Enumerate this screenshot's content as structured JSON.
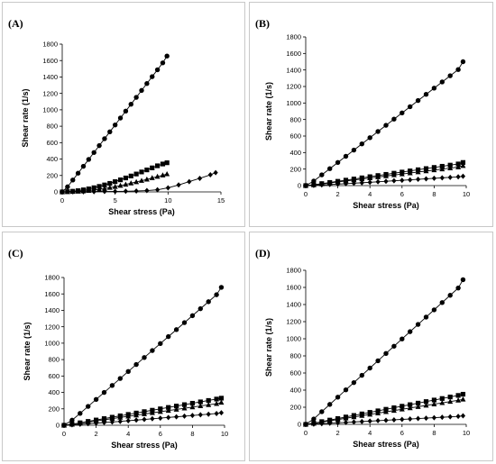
{
  "chart_data": [
    {
      "type": "scatter",
      "panel_label": "(A)",
      "xlabel": "Shear stress (Pa)",
      "ylabel": "Shear rate (1/s)",
      "xlim": [
        0,
        15
      ],
      "ylim": [
        0,
        1800
      ],
      "xticks": [
        0,
        5,
        10,
        15
      ],
      "yticks": [
        0,
        200,
        400,
        600,
        800,
        1000,
        1200,
        1400,
        1600,
        1800
      ],
      "grid": false,
      "series": [
        {
          "marker": "circle",
          "x": [
            0,
            0.5,
            1,
            1.5,
            2,
            2.5,
            3,
            3.5,
            4,
            4.5,
            5,
            5.5,
            6,
            6.5,
            7,
            7.5,
            8,
            8.5,
            9,
            9.5,
            9.9
          ],
          "y": [
            0,
            62,
            145,
            228,
            312,
            396,
            480,
            564,
            648,
            732,
            816,
            900,
            984,
            1068,
            1152,
            1236,
            1320,
            1404,
            1488,
            1572,
            1655
          ]
        },
        {
          "marker": "square",
          "x": [
            0,
            0.5,
            1,
            1.5,
            2,
            2.5,
            3,
            3.5,
            4,
            4.5,
            5,
            5.5,
            6,
            6.5,
            7,
            7.5,
            8,
            8.5,
            9,
            9.5,
            9.9
          ],
          "y": [
            0,
            3,
            8,
            15,
            25,
            37,
            51,
            67,
            85,
            104,
            125,
            147,
            170,
            194,
            218,
            243,
            268,
            293,
            318,
            340,
            355
          ]
        },
        {
          "marker": "triangle",
          "x": [
            0,
            0.5,
            1,
            1.5,
            2,
            2.5,
            3,
            3.5,
            4,
            4.5,
            5,
            5.5,
            6,
            6.5,
            7,
            7.5,
            8,
            8.5,
            9,
            9.5,
            9.9
          ],
          "y": [
            0,
            1,
            3,
            6,
            10,
            16,
            23,
            31,
            41,
            52,
            64,
            77,
            91,
            106,
            121,
            137,
            153,
            170,
            187,
            203,
            218
          ]
        },
        {
          "marker": "diamond",
          "x": [
            0,
            1,
            2,
            3,
            4,
            5,
            6,
            7,
            8,
            9,
            10,
            11,
            12,
            13,
            14,
            14.5
          ],
          "y": [
            0,
            1,
            2,
            3,
            5,
            6,
            8,
            11,
            16,
            26,
            50,
            85,
            125,
            165,
            208,
            235
          ]
        }
      ]
    },
    {
      "type": "scatter",
      "panel_label": "(B)",
      "xlabel": "Shear stress (Pa)",
      "ylabel": "Shear rate (1/s)",
      "xlim": [
        0,
        10
      ],
      "ylim": [
        0,
        1800
      ],
      "xticks": [
        0,
        2,
        4,
        6,
        8,
        10
      ],
      "yticks": [
        0,
        200,
        400,
        600,
        800,
        1000,
        1200,
        1400,
        1600,
        1800
      ],
      "grid": false,
      "series": [
        {
          "marker": "circle",
          "x": [
            0,
            0.5,
            1,
            1.5,
            2,
            2.5,
            3,
            3.5,
            4,
            4.5,
            5,
            5.5,
            6,
            6.5,
            7,
            7.5,
            8,
            8.5,
            9,
            9.5,
            9.8
          ],
          "y": [
            0,
            55,
            130,
            205,
            280,
            355,
            430,
            505,
            580,
            655,
            730,
            805,
            880,
            955,
            1030,
            1105,
            1180,
            1255,
            1330,
            1405,
            1500
          ]
        },
        {
          "marker": "square",
          "x": [
            0,
            0.5,
            1,
            1.5,
            2,
            2.5,
            3,
            3.5,
            4,
            4.5,
            5,
            5.5,
            6,
            6.5,
            7,
            7.5,
            8,
            8.5,
            9,
            9.5,
            9.8
          ],
          "y": [
            0,
            10,
            24,
            38,
            52,
            66,
            80,
            94,
            108,
            122,
            136,
            150,
            164,
            178,
            192,
            206,
            220,
            234,
            248,
            262,
            280
          ]
        },
        {
          "marker": "triangle",
          "x": [
            0,
            0.5,
            1,
            1.5,
            2,
            2.5,
            3,
            3.5,
            4,
            4.5,
            5,
            5.5,
            6,
            6.5,
            7,
            7.5,
            8,
            8.5,
            9,
            9.5,
            9.8
          ],
          "y": [
            0,
            8,
            20,
            32,
            44,
            56,
            68,
            80,
            92,
            104,
            116,
            128,
            140,
            152,
            164,
            176,
            188,
            200,
            212,
            224,
            240
          ]
        },
        {
          "marker": "diamond",
          "x": [
            0,
            0.5,
            1,
            1.5,
            2,
            2.5,
            3,
            3.5,
            4,
            4.5,
            5,
            5.5,
            6,
            6.5,
            7,
            7.5,
            8,
            8.5,
            9,
            9.5,
            9.8
          ],
          "y": [
            0,
            3,
            8,
            13,
            18,
            23,
            29,
            34,
            40,
            46,
            52,
            58,
            64,
            70,
            76,
            82,
            88,
            94,
            100,
            106,
            113
          ]
        }
      ]
    },
    {
      "type": "scatter",
      "panel_label": "(C)",
      "xlabel": "Shear stress (Pa)",
      "ylabel": "Shear rate (1/s)",
      "xlim": [
        0,
        10
      ],
      "ylim": [
        0,
        1800
      ],
      "xticks": [
        0,
        2,
        4,
        6,
        8,
        10
      ],
      "yticks": [
        0,
        200,
        400,
        600,
        800,
        1000,
        1200,
        1400,
        1600,
        1800
      ],
      "grid": false,
      "series": [
        {
          "marker": "circle",
          "x": [
            0,
            0.5,
            1,
            1.5,
            2,
            2.5,
            3,
            3.5,
            4,
            4.5,
            5,
            5.5,
            6,
            6.5,
            7,
            7.5,
            8,
            8.5,
            9,
            9.5,
            9.8
          ],
          "y": [
            0,
            62,
            145,
            230,
            315,
            400,
            485,
            570,
            655,
            740,
            825,
            910,
            995,
            1080,
            1165,
            1250,
            1335,
            1420,
            1505,
            1590,
            1680
          ]
        },
        {
          "marker": "square",
          "x": [
            0,
            0.5,
            1,
            1.5,
            2,
            2.5,
            3,
            3.5,
            4,
            4.5,
            5,
            5.5,
            6,
            6.5,
            7,
            7.5,
            8,
            8.5,
            9,
            9.5,
            9.8
          ],
          "y": [
            0,
            13,
            30,
            47,
            64,
            81,
            98,
            115,
            132,
            149,
            166,
            183,
            200,
            217,
            234,
            251,
            268,
            285,
            302,
            319,
            330
          ]
        },
        {
          "marker": "triangle",
          "x": [
            0,
            0.5,
            1,
            1.5,
            2,
            2.5,
            3,
            3.5,
            4,
            4.5,
            5,
            5.5,
            6,
            6.5,
            7,
            7.5,
            8,
            8.5,
            9,
            9.5,
            9.8
          ],
          "y": [
            0,
            11,
            25,
            39,
            53,
            67,
            81,
            95,
            109,
            123,
            137,
            151,
            165,
            179,
            193,
            207,
            221,
            235,
            249,
            263,
            278
          ]
        },
        {
          "marker": "diamond",
          "x": [
            0,
            0.5,
            1,
            1.5,
            2,
            2.5,
            3,
            3.5,
            4,
            4.5,
            5,
            5.5,
            6,
            6.5,
            7,
            7.5,
            8,
            8.5,
            9,
            9.5,
            9.8
          ],
          "y": [
            0,
            5,
            12,
            19,
            26,
            33,
            40,
            47,
            55,
            63,
            71,
            79,
            87,
            95,
            103,
            111,
            119,
            127,
            135,
            143,
            152
          ]
        }
      ]
    },
    {
      "type": "scatter",
      "panel_label": "(D)",
      "xlabel": "Shear stress (Pa)",
      "ylabel": "Shear rate (1/s)",
      "xlim": [
        0,
        10
      ],
      "ylim": [
        0,
        1800
      ],
      "xticks": [
        0,
        2,
        4,
        6,
        8,
        10
      ],
      "yticks": [
        0,
        200,
        400,
        600,
        800,
        1000,
        1200,
        1400,
        1600,
        1800
      ],
      "grid": false,
      "series": [
        {
          "marker": "circle",
          "x": [
            0,
            0.5,
            1,
            1.5,
            2,
            2.5,
            3,
            3.5,
            4,
            4.5,
            5,
            5.5,
            6,
            6.5,
            7,
            7.5,
            8,
            8.5,
            9,
            9.5,
            9.8
          ],
          "y": [
            0,
            63,
            148,
            233,
            318,
            403,
            488,
            573,
            658,
            743,
            828,
            913,
            998,
            1083,
            1168,
            1253,
            1338,
            1423,
            1508,
            1593,
            1690
          ]
        },
        {
          "marker": "square",
          "x": [
            0,
            0.5,
            1,
            1.5,
            2,
            2.5,
            3,
            3.5,
            4,
            4.5,
            5,
            5.5,
            6,
            6.5,
            7,
            7.5,
            8,
            8.5,
            9,
            9.5,
            9.8
          ],
          "y": [
            0,
            14,
            32,
            50,
            68,
            86,
            104,
            122,
            140,
            158,
            176,
            194,
            212,
            230,
            248,
            266,
            284,
            302,
            320,
            338,
            352
          ]
        },
        {
          "marker": "triangle",
          "x": [
            0,
            0.5,
            1,
            1.5,
            2,
            2.5,
            3,
            3.5,
            4,
            4.5,
            5,
            5.5,
            6,
            6.5,
            7,
            7.5,
            8,
            8.5,
            9,
            9.5,
            9.8
          ],
          "y": [
            0,
            11,
            26,
            41,
            56,
            71,
            86,
            101,
            116,
            131,
            146,
            161,
            176,
            191,
            206,
            221,
            236,
            251,
            266,
            281,
            292
          ]
        },
        {
          "marker": "diamond",
          "x": [
            0,
            0.5,
            1,
            1.5,
            2,
            2.5,
            3,
            3.5,
            4,
            4.5,
            5,
            5.5,
            6,
            6.5,
            7,
            7.5,
            8,
            8.5,
            9,
            9.5,
            9.8
          ],
          "y": [
            0,
            3,
            8,
            13,
            18,
            23,
            28,
            33,
            38,
            43,
            48,
            53,
            58,
            63,
            68,
            73,
            78,
            83,
            88,
            93,
            100
          ]
        }
      ]
    }
  ]
}
